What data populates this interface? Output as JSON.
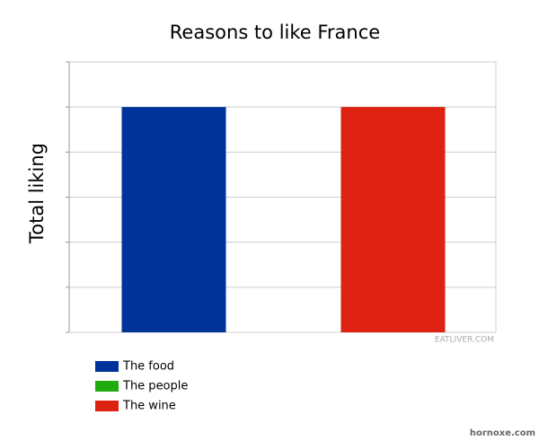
{
  "chart_data": {
    "type": "bar",
    "title": "Reasons to like France",
    "y_label": "Total liking",
    "categories": [
      null
    ],
    "series": [
      {
        "name": "The food",
        "color": "#003399",
        "values": [
          5
        ]
      },
      {
        "name": "The people",
        "color": "#22aa11",
        "values": [
          0
        ]
      },
      {
        "name": "The wine",
        "color": "#dd2211",
        "values": [
          5
        ]
      }
    ],
    "ylim": [
      0,
      6
    ],
    "yticks": [
      0,
      1,
      2,
      3,
      4,
      5,
      6
    ],
    "grid": true,
    "watermark": "EATLIVER.COM",
    "site_mark": "hornoxe.com"
  }
}
